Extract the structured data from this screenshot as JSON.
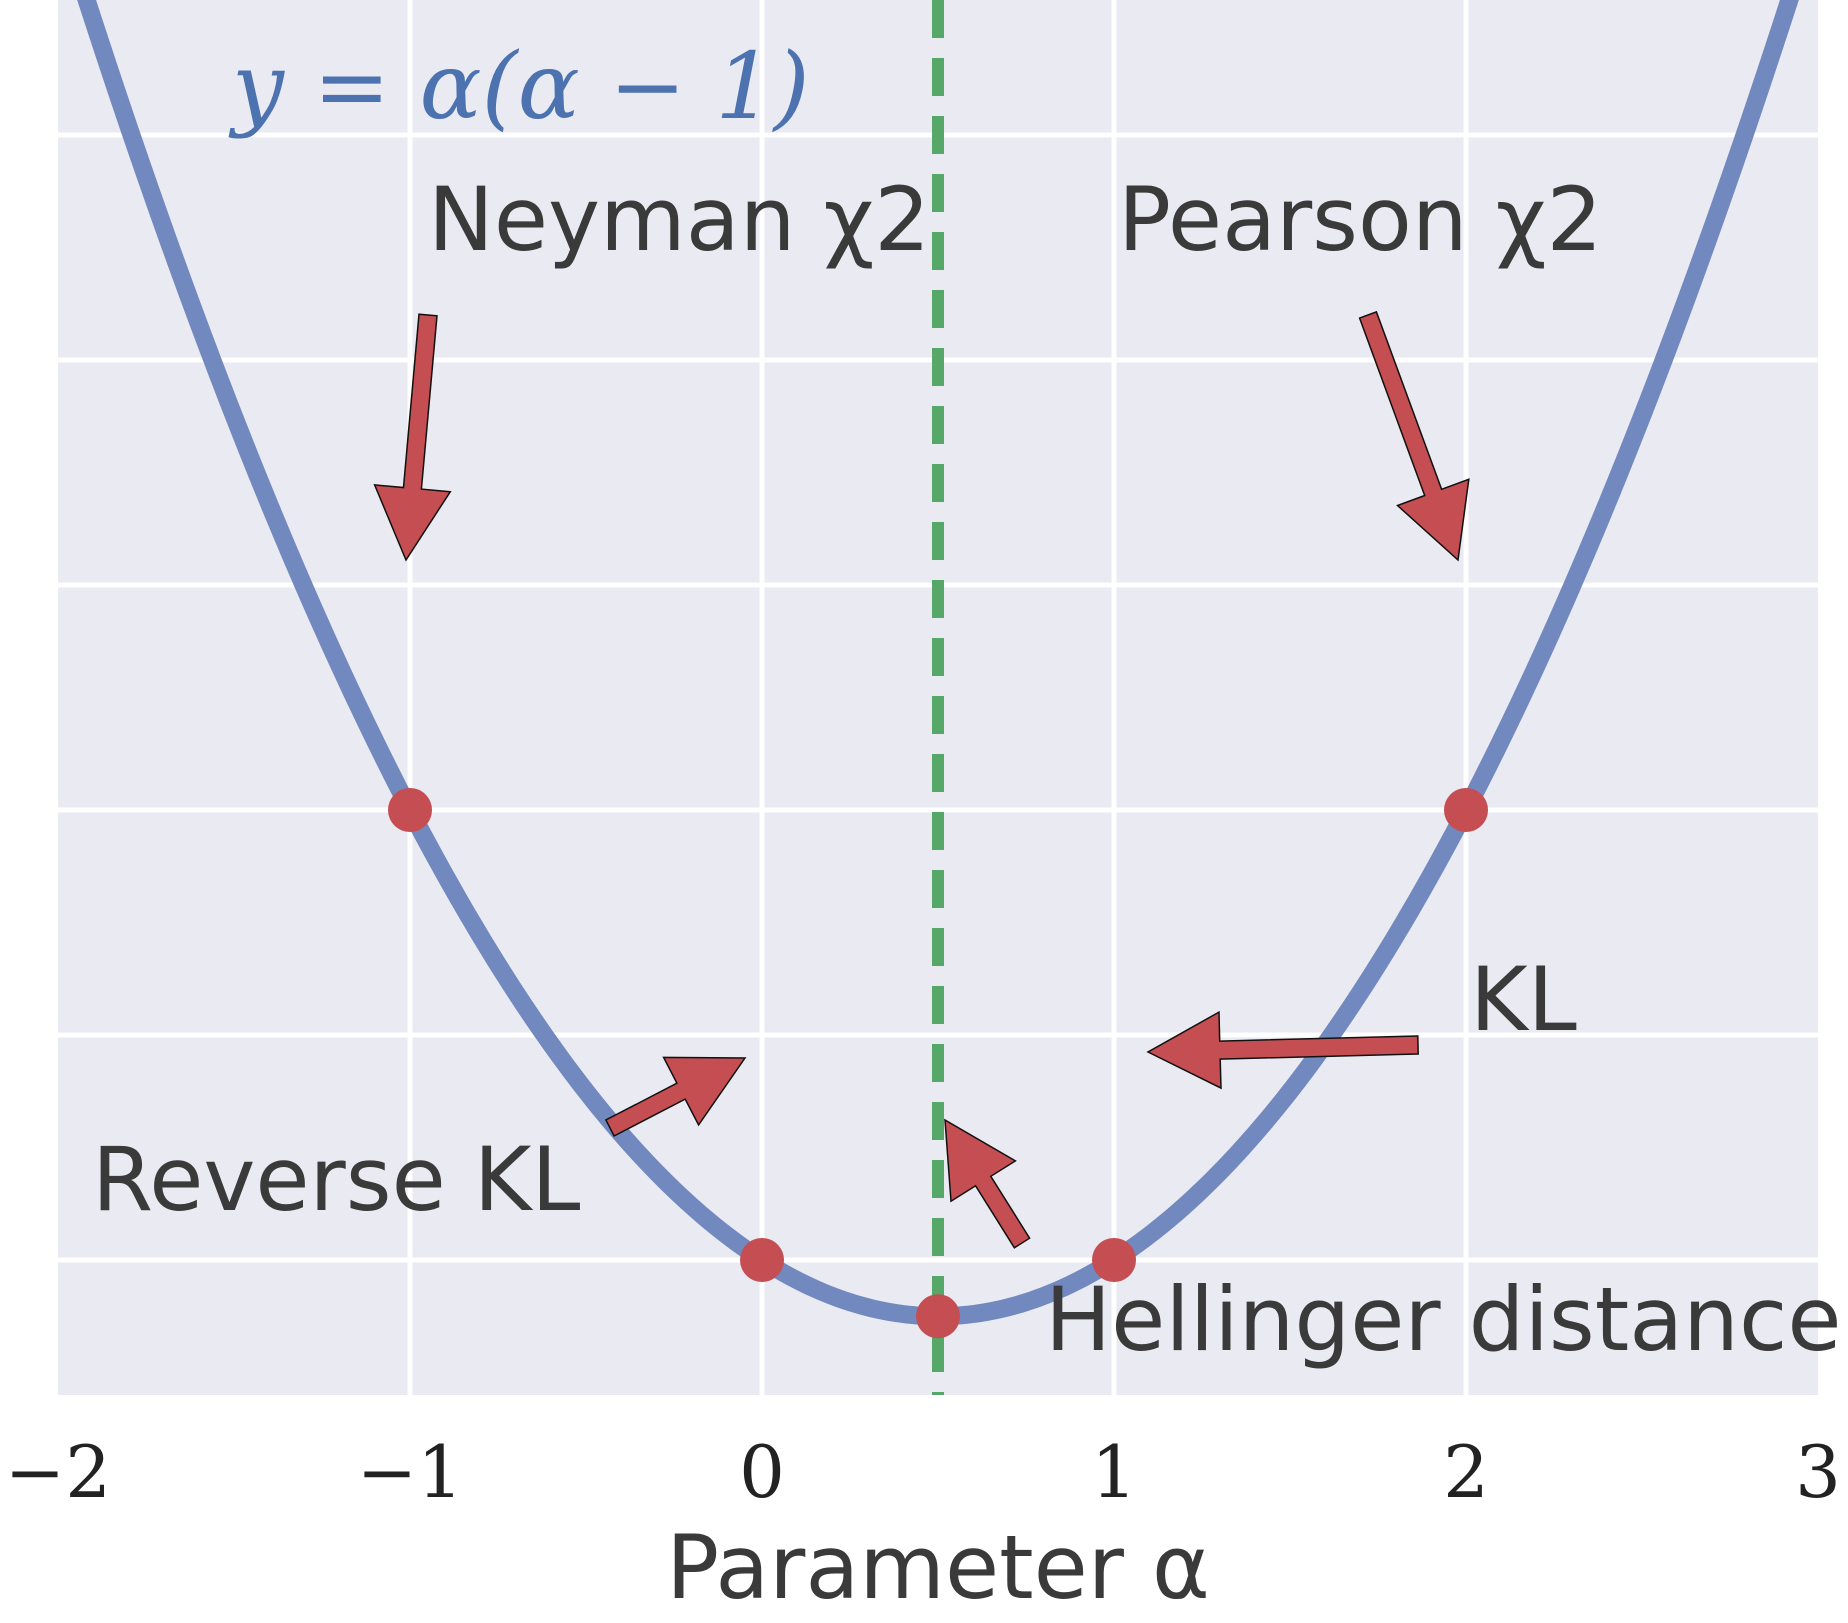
{
  "chart_data": {
    "type": "line",
    "xlabel": "Parameter α",
    "ylabel": "",
    "xlim": [
      -2,
      3
    ],
    "ylim": [
      -0.6,
      5.6
    ],
    "xticks": [
      -2,
      -1,
      0,
      1,
      2,
      3
    ],
    "xtick_labels": [
      "−2",
      "−1",
      "0",
      "1",
      "2",
      "3"
    ],
    "ygrid": [
      0,
      1,
      2,
      3,
      4,
      5
    ],
    "grid": true,
    "series": [
      {
        "name": "y = α(α − 1)",
        "function": "alpha*(alpha-1)",
        "color": "#7189bf"
      }
    ],
    "vertical_line": {
      "x": 0.5,
      "style": "dashed",
      "color": "#55a868"
    },
    "points": [
      {
        "x": -1,
        "y": 2,
        "label": "Neyman χ2"
      },
      {
        "x": 2,
        "y": 2,
        "label": "Pearson χ2"
      },
      {
        "x": 0,
        "y": 0,
        "label": "Reverse KL"
      },
      {
        "x": 1,
        "y": 0,
        "label": "KL"
      },
      {
        "x": 0.5,
        "y": -0.25,
        "label": "Hellinger distance"
      }
    ],
    "equation_label": "y = α(α − 1)",
    "colors": {
      "background": "#eaeaf2",
      "grid": "#ffffff",
      "curve": "#7189bf",
      "marker": "#c44e52",
      "vline": "#55a868"
    }
  }
}
